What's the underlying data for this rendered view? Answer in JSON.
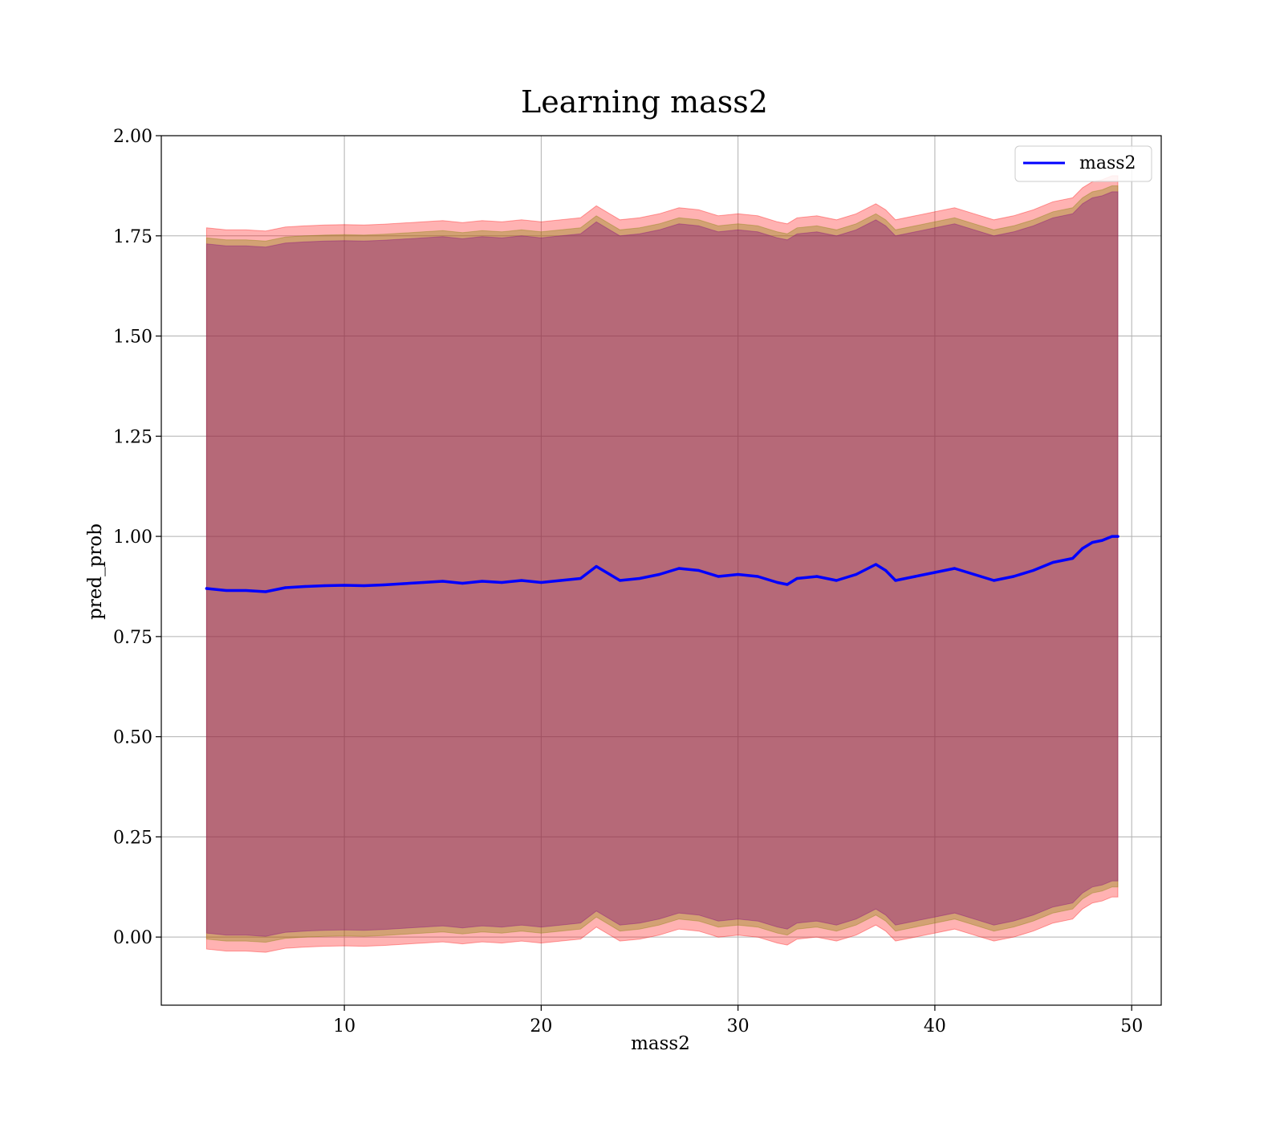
{
  "chart_data": {
    "type": "line",
    "title": "Learning mass2",
    "xlabel": "mass2",
    "ylabel": "pred_prob",
    "xlim": [
      0.7,
      51.5
    ],
    "ylim": [
      -0.17,
      2.0
    ],
    "xticks": [
      10,
      20,
      30,
      40,
      50
    ],
    "yticks": [
      0.0,
      0.25,
      0.5,
      0.75,
      1.0,
      1.25,
      1.5,
      1.75,
      2.0
    ],
    "xtick_labels": [
      "10",
      "20",
      "30",
      "40",
      "50"
    ],
    "ytick_labels": [
      "0.00",
      "0.25",
      "0.50",
      "0.75",
      "1.00",
      "1.25",
      "1.50",
      "1.75",
      "2.00"
    ],
    "grid": true,
    "legend": {
      "position": "top-right",
      "entries": [
        "mass2"
      ]
    },
    "series": [
      {
        "name": "mass2",
        "color": "#0000ff",
        "x": [
          3,
          4,
          5,
          6,
          7,
          8,
          9,
          10,
          11,
          12,
          13,
          14,
          15,
          16,
          17,
          18,
          19,
          20,
          21,
          22,
          22.8,
          24,
          25,
          26,
          27,
          28,
          29,
          30,
          31,
          32,
          32.5,
          33,
          34,
          35,
          36,
          37,
          37.5,
          38,
          39,
          40,
          41,
          42,
          43,
          44,
          45,
          46,
          47,
          47.5,
          48,
          48.5,
          49,
          49.3
        ],
        "values": [
          0.87,
          0.865,
          0.865,
          0.862,
          0.872,
          0.875,
          0.877,
          0.878,
          0.877,
          0.879,
          0.882,
          0.885,
          0.888,
          0.883,
          0.888,
          0.885,
          0.89,
          0.885,
          0.89,
          0.895,
          0.925,
          0.89,
          0.895,
          0.905,
          0.92,
          0.915,
          0.9,
          0.905,
          0.9,
          0.885,
          0.88,
          0.895,
          0.9,
          0.89,
          0.905,
          0.93,
          0.915,
          0.89,
          0.9,
          0.91,
          0.92,
          0.905,
          0.89,
          0.9,
          0.915,
          0.935,
          0.945,
          0.97,
          0.985,
          0.99,
          1.0,
          1.0
        ]
      }
    ],
    "bands": [
      {
        "fill": "#ff0000",
        "opacity": 0.3,
        "offset_upper": 0.9,
        "offset_lower": 0.9
      },
      {
        "fill": "#808000",
        "opacity": 0.35,
        "offset_upper": 0.875,
        "offset_lower": 0.875
      },
      {
        "fill": "#800080",
        "opacity": 0.35,
        "offset_upper": 0.86,
        "offset_lower": 0.86
      }
    ]
  }
}
